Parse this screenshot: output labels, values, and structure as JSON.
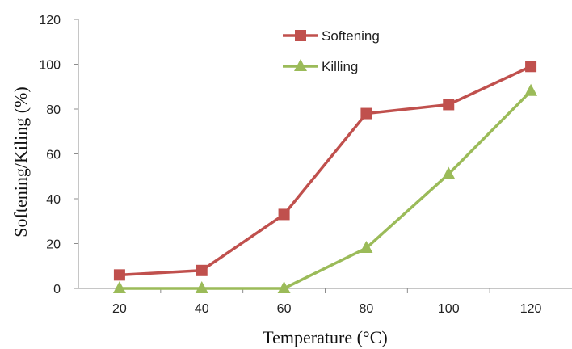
{
  "chart_data": {
    "type": "line",
    "title": "",
    "xlabel": "Temperature (°C)",
    "ylabel": "Softening/Kiling (%)",
    "x": [
      20,
      40,
      60,
      80,
      100,
      120
    ],
    "x_tick_labels": [
      "20",
      "40",
      "60",
      "80",
      "100",
      "120"
    ],
    "ylim": [
      0,
      120
    ],
    "y_ticks": [
      0,
      20,
      40,
      60,
      80,
      100,
      120
    ],
    "y_tick_labels": [
      "0",
      "20",
      "40",
      "60",
      "80",
      "100",
      "120"
    ],
    "grid": false,
    "legend_position": "top-center",
    "series": [
      {
        "name": "Softening",
        "values": [
          6,
          8,
          33,
          78,
          82,
          99
        ],
        "color": "#c0504d",
        "marker": "square"
      },
      {
        "name": "Killing",
        "values": [
          0,
          0,
          0,
          18,
          51,
          88
        ],
        "color": "#9bbb59",
        "marker": "triangle"
      }
    ]
  }
}
